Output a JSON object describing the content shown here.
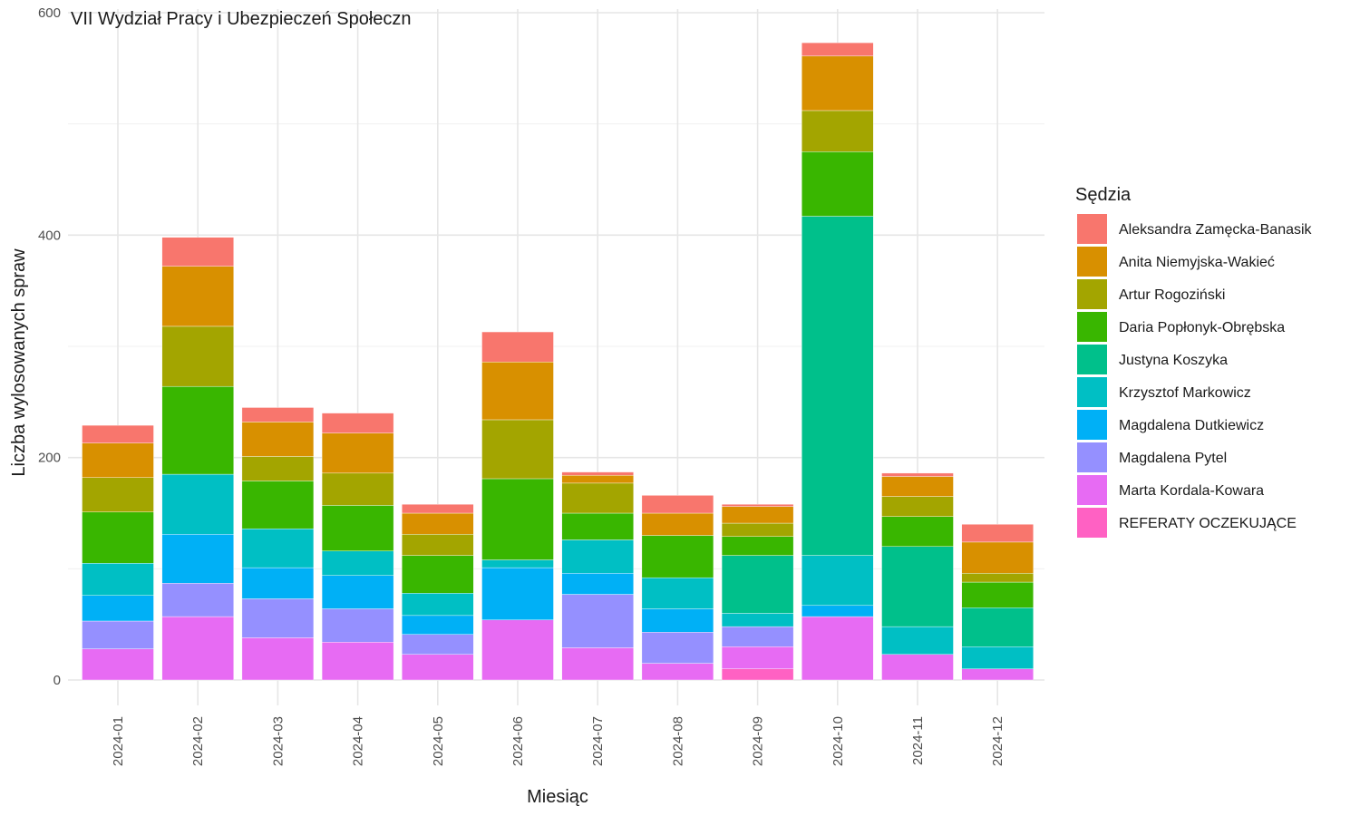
{
  "chart_data": {
    "type": "bar",
    "stacked": true,
    "title": "VII Wydział Pracy i Ubezpieczeń Społeczn",
    "xlabel": "Miesiąc",
    "ylabel": "Liczba wylosowanych spraw",
    "ylim": [
      0,
      600
    ],
    "yticks": [
      0,
      200,
      400,
      600
    ],
    "grid": true,
    "legend": {
      "title": "Sędzia",
      "position": "right"
    },
    "categories": [
      "2024-01",
      "2024-02",
      "2024-03",
      "2024-04",
      "2024-05",
      "2024-06",
      "2024-07",
      "2024-08",
      "2024-09",
      "2024-10",
      "2024-11",
      "2024-12"
    ],
    "series": [
      {
        "name": "REFERATY OCZEKUJĄCE",
        "color": "#FF61C3",
        "values": [
          0,
          0,
          0,
          0,
          0,
          0,
          0,
          0,
          10,
          0,
          0,
          0
        ]
      },
      {
        "name": "Marta Kordala-Kowara",
        "color": "#E76BF3",
        "values": [
          28,
          57,
          38,
          34,
          23,
          54,
          29,
          15,
          20,
          57,
          23,
          10
        ]
      },
      {
        "name": "Magdalena Pytel",
        "color": "#9590FF",
        "values": [
          25,
          30,
          35,
          30,
          18,
          0,
          48,
          28,
          18,
          0,
          0,
          0
        ]
      },
      {
        "name": "Magdalena Dutkiewicz",
        "color": "#00B0F6",
        "values": [
          23,
          44,
          28,
          30,
          17,
          47,
          19,
          21,
          0,
          10,
          0,
          0
        ]
      },
      {
        "name": "Krzysztof Markowicz",
        "color": "#00BFC4",
        "values": [
          29,
          54,
          35,
          22,
          20,
          7,
          30,
          28,
          12,
          45,
          25,
          20
        ]
      },
      {
        "name": "Justyna Koszyka",
        "color": "#00C08B",
        "values": [
          0,
          0,
          0,
          0,
          0,
          0,
          0,
          0,
          52,
          305,
          72,
          35
        ]
      },
      {
        "name": "Daria Popłonyk-Obrębska",
        "color": "#39B600",
        "values": [
          46,
          79,
          43,
          41,
          34,
          73,
          24,
          38,
          17,
          58,
          27,
          23
        ]
      },
      {
        "name": "Artur Rogoziński",
        "color": "#A3A500",
        "values": [
          31,
          54,
          22,
          29,
          19,
          53,
          27,
          0,
          12,
          37,
          18,
          8
        ]
      },
      {
        "name": "Anita Niemyjska-Wakieć",
        "color": "#D89000",
        "values": [
          31,
          54,
          31,
          36,
          19,
          52,
          7,
          20,
          15,
          49,
          18,
          28
        ]
      },
      {
        "name": "Aleksandra Zamęcka-Banasik",
        "color": "#F8766D",
        "values": [
          16,
          26,
          13,
          18,
          8,
          27,
          3,
          16,
          2,
          12,
          3,
          16
        ]
      }
    ]
  }
}
